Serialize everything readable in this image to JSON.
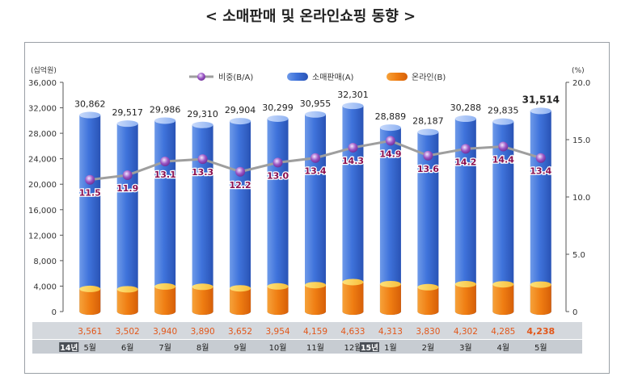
{
  "title": "< 소매판매 및 온라인쇼핑 동향 >",
  "left_unit": "(십억원)",
  "right_unit": "(%)",
  "legend": {
    "ratio": "비중(B/A)",
    "retail": "소매판매(A)",
    "online": "온라인(B)"
  },
  "colors": {
    "retail": "#3f73db",
    "retail_light": "#9bbcf5",
    "online": "#ee7a10",
    "online_light": "#fbd24e",
    "line": "#9e9e9e",
    "dot": "#8a3fb0",
    "ratio_label": "#8a1050",
    "online_label": "#e2571a",
    "band": "#d4d8dd",
    "month_band": "#c7ccd2",
    "year_badge": "#4a4f56"
  },
  "chart_data": {
    "type": "bar",
    "categories": [
      "5월",
      "6월",
      "7월",
      "8월",
      "9월",
      "10월",
      "11월",
      "12월",
      "1월",
      "2월",
      "3월",
      "4월",
      "5월"
    ],
    "year_labels": [
      "14년",
      "",
      "",
      "",
      "",
      "",
      "",
      "",
      "15년",
      "",
      "",
      "",
      ""
    ],
    "series": [
      {
        "name": "소매판매(A)",
        "axis": "left",
        "values": [
          30862,
          29517,
          29986,
          29310,
          29904,
          30299,
          30955,
          32301,
          28889,
          28187,
          30288,
          29835,
          31514
        ],
        "labels": [
          "30,862",
          "29,517",
          "29,986",
          "29,310",
          "29,904",
          "30,299",
          "30,955",
          "32,301",
          "28,889",
          "28,187",
          "30,288",
          "29,835",
          "31,514"
        ]
      },
      {
        "name": "온라인(B)",
        "axis": "left",
        "values": [
          3561,
          3502,
          3940,
          3890,
          3652,
          3954,
          4159,
          4633,
          4313,
          3830,
          4302,
          4285,
          4238
        ],
        "labels": [
          "3,561",
          "3,502",
          "3,940",
          "3,890",
          "3,652",
          "3,954",
          "4,159",
          "4,633",
          "4,313",
          "3,830",
          "4,302",
          "4,285",
          "4,238"
        ]
      },
      {
        "name": "비중(B/A)",
        "type": "line",
        "axis": "right",
        "values": [
          11.5,
          11.9,
          13.1,
          13.3,
          12.2,
          13.0,
          13.4,
          14.3,
          14.9,
          13.6,
          14.2,
          14.4,
          13.4
        ],
        "labels": [
          "11.5",
          "11.9",
          "13.1",
          "13.3",
          "12.2",
          "13.0",
          "13.4",
          "14.3",
          "14.9",
          "13.6",
          "14.2",
          "14.4",
          "13.4"
        ]
      }
    ],
    "y_left": {
      "min": 0,
      "max": 36000,
      "ticks": [
        0,
        4000,
        8000,
        12000,
        16000,
        20000,
        24000,
        28000,
        32000,
        36000
      ],
      "tick_labels": [
        "0",
        "4,000",
        "8,000",
        "12,000",
        "16,000",
        "20,000",
        "24,000",
        "28,000",
        "32,000",
        "36,000"
      ]
    },
    "y_right": {
      "min": 0,
      "max": 20,
      "ticks": [
        0,
        5,
        10,
        15,
        20
      ],
      "tick_labels": [
        "0",
        "5.0",
        "10.0",
        "15.0",
        "20.0"
      ]
    },
    "highlight_last": true,
    "grid": false,
    "legend_position": "top-center"
  }
}
